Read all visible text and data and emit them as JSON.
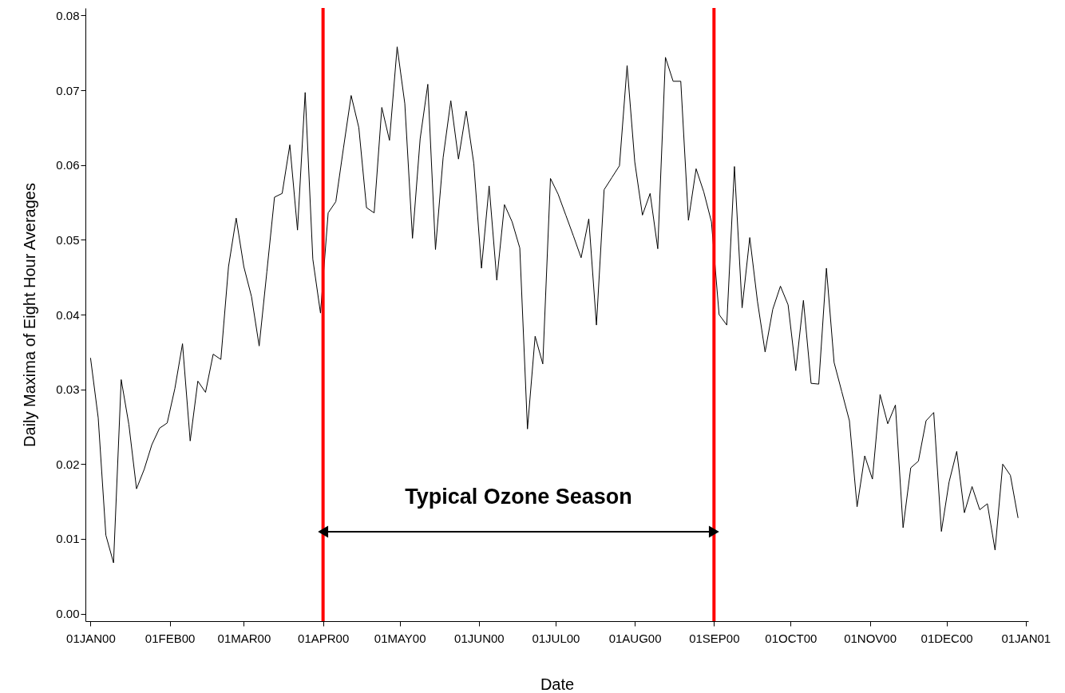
{
  "chart_data": {
    "type": "line",
    "xlabel": "Date",
    "ylabel": "Daily Maxima of Eight Hour Averages",
    "x": [
      "2000-01-01",
      "2000-01-04",
      "2000-01-07",
      "2000-01-10",
      "2000-01-13",
      "2000-01-16",
      "2000-01-19",
      "2000-01-22",
      "2000-01-25",
      "2000-01-28",
      "2000-01-31",
      "2000-02-03",
      "2000-02-06",
      "2000-02-09",
      "2000-02-12",
      "2000-02-15",
      "2000-02-18",
      "2000-02-21",
      "2000-02-24",
      "2000-02-27",
      "2000-03-01",
      "2000-03-04",
      "2000-03-07",
      "2000-03-10",
      "2000-03-13",
      "2000-03-16",
      "2000-03-19",
      "2000-03-22",
      "2000-03-25",
      "2000-03-28",
      "2000-03-31",
      "2000-04-03",
      "2000-04-06",
      "2000-04-09",
      "2000-04-12",
      "2000-04-15",
      "2000-04-18",
      "2000-04-21",
      "2000-04-24",
      "2000-04-27",
      "2000-04-30",
      "2000-05-03",
      "2000-05-06",
      "2000-05-09",
      "2000-05-12",
      "2000-05-15",
      "2000-05-18",
      "2000-05-21",
      "2000-05-24",
      "2000-05-27",
      "2000-05-30",
      "2000-06-02",
      "2000-06-05",
      "2000-06-08",
      "2000-06-11",
      "2000-06-14",
      "2000-06-17",
      "2000-06-20",
      "2000-06-23",
      "2000-06-26",
      "2000-06-29",
      "2000-07-02",
      "2000-07-05",
      "2000-07-08",
      "2000-07-11",
      "2000-07-14",
      "2000-07-17",
      "2000-07-20",
      "2000-07-23",
      "2000-07-26",
      "2000-07-29",
      "2000-08-01",
      "2000-08-04",
      "2000-08-07",
      "2000-08-10",
      "2000-08-13",
      "2000-08-16",
      "2000-08-19",
      "2000-08-22",
      "2000-08-25",
      "2000-08-28",
      "2000-08-31",
      "2000-09-03",
      "2000-09-06",
      "2000-09-09",
      "2000-09-12",
      "2000-09-15",
      "2000-09-18",
      "2000-09-21",
      "2000-09-24",
      "2000-09-27",
      "2000-09-30",
      "2000-10-03",
      "2000-10-06",
      "2000-10-09",
      "2000-10-12",
      "2000-10-15",
      "2000-10-18",
      "2000-10-21",
      "2000-10-24",
      "2000-10-27",
      "2000-10-30",
      "2000-11-02",
      "2000-11-05",
      "2000-11-08",
      "2000-11-11",
      "2000-11-14",
      "2000-11-17",
      "2000-11-20",
      "2000-11-23",
      "2000-11-26",
      "2000-11-29",
      "2000-12-02",
      "2000-12-05",
      "2000-12-08",
      "2000-12-11",
      "2000-12-14",
      "2000-12-17",
      "2000-12-20",
      "2000-12-23",
      "2000-12-26",
      "2000-12-29"
    ],
    "series": [
      {
        "color": "#000000",
        "values": [
          0.0342,
          0.0262,
          0.0105,
          0.0068,
          0.0313,
          0.0253,
          0.0167,
          0.0193,
          0.0226,
          0.0248,
          0.0255,
          0.0301,
          0.0361,
          0.0231,
          0.0311,
          0.0296,
          0.0347,
          0.034,
          0.0464,
          0.0529,
          0.0464,
          0.0424,
          0.0358,
          0.0457,
          0.0557,
          0.0562,
          0.0627,
          0.0513,
          0.0697,
          0.0474,
          0.0402,
          0.0536,
          0.0551,
          0.0623,
          0.0693,
          0.065,
          0.0543,
          0.0536,
          0.0677,
          0.0633,
          0.0758,
          0.0682,
          0.0502,
          0.0635,
          0.0708,
          0.0487,
          0.061,
          0.0686,
          0.0608,
          0.0672,
          0.0602,
          0.0462,
          0.0572,
          0.0446,
          0.0547,
          0.0524,
          0.0489,
          0.0247,
          0.0371,
          0.0334,
          0.0582,
          0.0561,
          0.0533,
          0.0505,
          0.0476,
          0.0528,
          0.0386,
          0.0567,
          0.0583,
          0.0599,
          0.0733,
          0.0604,
          0.0533,
          0.0562,
          0.0488,
          0.0744,
          0.0712,
          0.0712,
          0.0526,
          0.0595,
          0.0564,
          0.0524,
          0.04,
          0.0386,
          0.0598,
          0.0409,
          0.0503,
          0.0418,
          0.035,
          0.0407,
          0.0438,
          0.0413,
          0.0325,
          0.0419,
          0.0308,
          0.0307,
          0.0462,
          0.0336,
          0.0297,
          0.0258,
          0.0143,
          0.0211,
          0.018,
          0.0293,
          0.0254,
          0.0279,
          0.0115,
          0.0195,
          0.0204,
          0.0258,
          0.0269,
          0.011,
          0.0176,
          0.0217,
          0.0135,
          0.017,
          0.0139,
          0.0147,
          0.0085,
          0.02,
          0.0185,
          0.0128
        ]
      }
    ],
    "xlim": [
      "1999-12-30",
      "2001-01-02"
    ],
    "xticks": [
      {
        "value": "2000-01-01",
        "label": "01JAN00"
      },
      {
        "value": "2000-02-01",
        "label": "01FEB00"
      },
      {
        "value": "2000-03-01",
        "label": "01MAR00"
      },
      {
        "value": "2000-04-01",
        "label": "01APR00"
      },
      {
        "value": "2000-05-01",
        "label": "01MAY00"
      },
      {
        "value": "2000-06-01",
        "label": "01JUN00"
      },
      {
        "value": "2000-07-01",
        "label": "01JUL00"
      },
      {
        "value": "2000-08-01",
        "label": "01AUG00"
      },
      {
        "value": "2000-09-01",
        "label": "01SEP00"
      },
      {
        "value": "2000-10-01",
        "label": "01OCT00"
      },
      {
        "value": "2000-11-01",
        "label": "01NOV00"
      },
      {
        "value": "2000-12-01",
        "label": "01DEC00"
      },
      {
        "value": "2001-01-01",
        "label": "01JAN01"
      }
    ],
    "ylim": [
      -0.001,
      0.081
    ],
    "yticks": [
      {
        "value": 0,
        "label": "0.00"
      },
      {
        "value": 0.01,
        "label": "0.01"
      },
      {
        "value": 0.02,
        "label": "0.02"
      },
      {
        "value": 0.03,
        "label": "0.03"
      },
      {
        "value": 0.04,
        "label": "0.04"
      },
      {
        "value": 0.05,
        "label": "0.05"
      },
      {
        "value": 0.06,
        "label": "0.06"
      },
      {
        "value": 0.07,
        "label": "0.07"
      },
      {
        "value": 0.08,
        "label": "0.08"
      }
    ],
    "ref_lines": [
      {
        "axis": "x",
        "value": "2000-04-01",
        "color": "#ff0000"
      },
      {
        "axis": "x",
        "value": "2000-09-01",
        "color": "#ff0000"
      }
    ],
    "annotations": [
      "Typical Ozone Season"
    ],
    "grid": false
  }
}
